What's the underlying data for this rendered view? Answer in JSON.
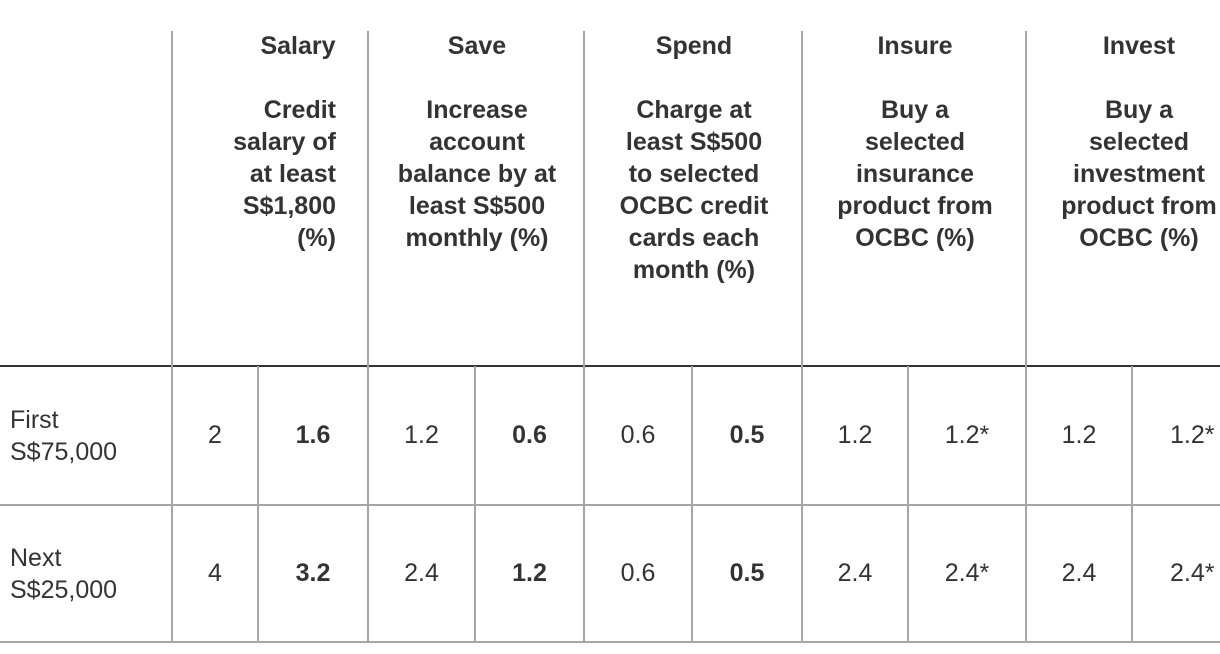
{
  "columns": [
    {
      "group": "Salary",
      "description": "Credit salary of at least S$1,800 (%)"
    },
    {
      "group": "Save",
      "description": "Increase account balance by at least S$500 monthly (%)"
    },
    {
      "group": "Spend",
      "description": "Charge at least S$500 to selected OCBC credit cards each month (%)"
    },
    {
      "group": "Insure",
      "description": "Buy a selected insurance product from OCBC (%)"
    },
    {
      "group": "Invest",
      "description": "Buy a selected investment product from OCBC (%)"
    }
  ],
  "rows": [
    {
      "label": "First S$75,000",
      "values": [
        "2",
        "1.6",
        "1.2",
        "0.6",
        "0.6",
        "0.5",
        "1.2",
        "1.2*",
        "1.2",
        "1.2*"
      ]
    },
    {
      "label": "Next S$25,000",
      "values": [
        "4",
        "3.2",
        "2.4",
        "1.2",
        "0.6",
        "0.5",
        "2.4",
        "2.4*",
        "2.4",
        "2.4*"
      ]
    }
  ],
  "colors": {
    "text": "#333333",
    "grid": "#a6a6a6",
    "header_rule": "#333333"
  }
}
